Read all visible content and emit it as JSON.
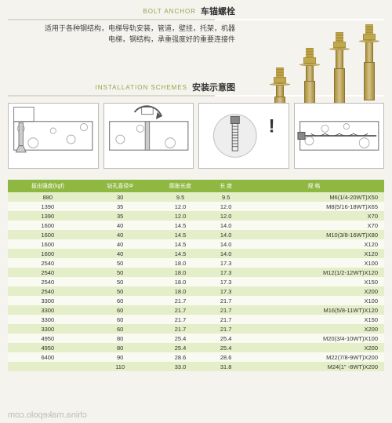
{
  "section1": {
    "en": "BOLT ANCHOR",
    "cn": "车锚螺栓",
    "desc1": "适用于各种钢结构，电梯导轨安装，管道，壁挂，托架，机器",
    "desc2": "电梯，钢结构，承重强度好的重要连接件"
  },
  "section2": {
    "en": "INSTALLATION SCHEMES",
    "cn": "安装示意图"
  },
  "bolt_heights": [
    95,
    120,
    140,
    150
  ],
  "shaft_heights": [
    40,
    55,
    65,
    70
  ],
  "table": {
    "headers": [
      "拔出强度(kgf)",
      "钻孔直径Φ",
      "膨胀长度",
      "长 度",
      "规 格"
    ],
    "rows": [
      [
        "880",
        "30",
        "9.5",
        "9.5",
        "M6(1/4-20WT)X50"
      ],
      [
        "1390",
        "35",
        "12.0",
        "12.0",
        "M8(5/16-18WT)X65"
      ],
      [
        "1390",
        "35",
        "12.0",
        "12.0",
        "X70"
      ],
      [
        "1600",
        "40",
        "14.5",
        "14.0",
        "X70"
      ],
      [
        "1600",
        "40",
        "14.5",
        "14.0",
        "M10(3/8-16WT)X80"
      ],
      [
        "1600",
        "40",
        "14.5",
        "14.0",
        "X120"
      ],
      [
        "1600",
        "40",
        "14.5",
        "14.0",
        "X120"
      ],
      [
        "2540",
        "50",
        "18.0",
        "17.3",
        "X100"
      ],
      [
        "2540",
        "50",
        "18.0",
        "17.3",
        "M12(1/2-12WT)X120"
      ],
      [
        "2540",
        "50",
        "18.0",
        "17.3",
        "X150"
      ],
      [
        "2540",
        "50",
        "18.0",
        "17.3",
        "X200"
      ],
      [
        "3300",
        "60",
        "21.7",
        "21.7",
        "X100"
      ],
      [
        "3300",
        "60",
        "21.7",
        "21.7",
        "M16(5/8-11WT)X120"
      ],
      [
        "3300",
        "60",
        "21.7",
        "21.7",
        "X150"
      ],
      [
        "3300",
        "60",
        "21.7",
        "21.7",
        "X200"
      ],
      [
        "4950",
        "80",
        "25.4",
        "25.4",
        "M20(3/4-10WT)X100"
      ],
      [
        "4950",
        "80",
        "25.4",
        "25.4",
        "X200"
      ],
      [
        "6400",
        "90",
        "28.6",
        "28.6",
        "M22(7/8-9WT)X200"
      ],
      [
        "",
        "110",
        "33.0",
        "31.8",
        "M24(1\" -8WT)X200"
      ]
    ]
  },
  "watermark": "china.makepolo.com",
  "colors": {
    "header_bg": "#8fb843",
    "row_odd": "#e4eec9",
    "row_even": "#f9fbf2"
  }
}
